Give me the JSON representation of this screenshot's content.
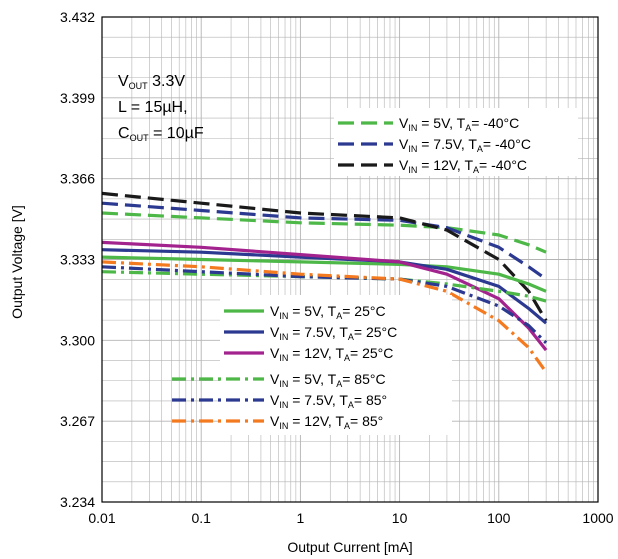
{
  "chart_data": {
    "type": "line",
    "xlabel": "Output Current [mA]",
    "ylabel": "Output Voltage [V]",
    "x_scale": "log",
    "xlim": [
      0.01,
      1000
    ],
    "ylim": [
      3.234,
      3.432
    ],
    "x_ticks": [
      "0.01",
      "0.1",
      "1",
      "10",
      "100",
      "1000"
    ],
    "y_ticks": [
      "3.234",
      "3.267",
      "3.300",
      "3.333",
      "3.366",
      "3.399",
      "3.432"
    ],
    "grid": true,
    "annotation": {
      "line1_main": "V",
      "line1_sub": "OUT",
      "line1_rest": " 3.3V",
      "line2": "L = 15µH,",
      "line3_main": "C",
      "line3_sub": "OUT",
      "line3_rest": " = 10µF"
    },
    "series": [
      {
        "vin_label": "V",
        "vin_sub": "IN",
        "vin_value": " = 5V, T",
        "ta_sub": "A",
        "ta_value": "= -40°C",
        "color": "#4DB848",
        "dash": "dashed",
        "x": [
          0.01,
          0.1,
          1,
          10,
          30,
          100,
          200,
          300
        ],
        "y": [
          3.352,
          3.35,
          3.348,
          3.347,
          3.346,
          3.343,
          3.339,
          3.336
        ]
      },
      {
        "vin_label": "V",
        "vin_sub": "IN",
        "vin_value": " = 7.5V, T",
        "ta_sub": "A",
        "ta_value": "= -40°C",
        "color": "#2B3990",
        "dash": "dashed",
        "x": [
          0.01,
          0.1,
          1,
          10,
          30,
          100,
          200,
          300
        ],
        "y": [
          3.356,
          3.353,
          3.35,
          3.349,
          3.346,
          3.338,
          3.33,
          3.325
        ]
      },
      {
        "vin_label": "V",
        "vin_sub": "IN",
        "vin_value": " = 12V, T",
        "ta_sub": "A",
        "ta_value": "= -40°C",
        "color": "#1A1A1A",
        "dash": "dashed",
        "x": [
          0.01,
          0.1,
          1,
          10,
          30,
          100,
          200,
          300
        ],
        "y": [
          3.36,
          3.356,
          3.352,
          3.35,
          3.345,
          3.333,
          3.32,
          3.308
        ]
      },
      {
        "vin_label": "V",
        "vin_sub": "IN",
        "vin_value": " = 5V, T",
        "ta_sub": "A",
        "ta_value": "= 25°C",
        "color": "#4DB848",
        "dash": "solid",
        "x": [
          0.01,
          0.1,
          1,
          10,
          30,
          100,
          200,
          300
        ],
        "y": [
          3.334,
          3.333,
          3.332,
          3.331,
          3.33,
          3.327,
          3.323,
          3.32
        ]
      },
      {
        "vin_label": "V",
        "vin_sub": "IN",
        "vin_value": " = 7.5V, T",
        "ta_sub": "A",
        "ta_value": "= 25°C",
        "color": "#2B3990",
        "dash": "solid",
        "x": [
          0.01,
          0.1,
          1,
          10,
          30,
          100,
          200,
          300
        ],
        "y": [
          3.337,
          3.336,
          3.334,
          3.332,
          3.329,
          3.322,
          3.313,
          3.307
        ]
      },
      {
        "vin_label": "V",
        "vin_sub": "IN",
        "vin_value": " = 12V, T",
        "ta_sub": "A",
        "ta_value": "= 25°C",
        "color": "#A3238E",
        "dash": "solid",
        "x": [
          0.01,
          0.1,
          1,
          10,
          30,
          100,
          200,
          300
        ],
        "y": [
          3.34,
          3.338,
          3.335,
          3.332,
          3.327,
          3.317,
          3.305,
          3.296
        ]
      },
      {
        "vin_label": "V",
        "vin_sub": "IN",
        "vin_value": " = 5V, T",
        "ta_sub": "A",
        "ta_value": "= 85°C",
        "color": "#4DB848",
        "dash": "dashdot",
        "x": [
          0.01,
          0.1,
          1,
          10,
          30,
          100,
          200,
          300
        ],
        "y": [
          3.328,
          3.327,
          3.326,
          3.325,
          3.323,
          3.32,
          3.318,
          3.316
        ]
      },
      {
        "vin_label": "V",
        "vin_sub": "IN",
        "vin_value": " = 7.5V, T",
        "ta_sub": "A",
        "ta_value": "= 85°",
        "color": "#2B3990",
        "dash": "dashdot",
        "x": [
          0.01,
          0.1,
          1,
          10,
          30,
          100,
          200,
          300
        ],
        "y": [
          3.33,
          3.328,
          3.326,
          3.325,
          3.322,
          3.314,
          3.306,
          3.299
        ]
      },
      {
        "vin_label": "V",
        "vin_sub": "IN",
        "vin_value": " = 12V, T",
        "ta_sub": "A",
        "ta_value": "= 85°",
        "color": "#F47A20",
        "dash": "dashdot",
        "x": [
          0.01,
          0.1,
          1,
          10,
          30,
          100,
          200,
          300
        ],
        "y": [
          3.332,
          3.33,
          3.327,
          3.325,
          3.32,
          3.308,
          3.297,
          3.287
        ]
      }
    ]
  }
}
